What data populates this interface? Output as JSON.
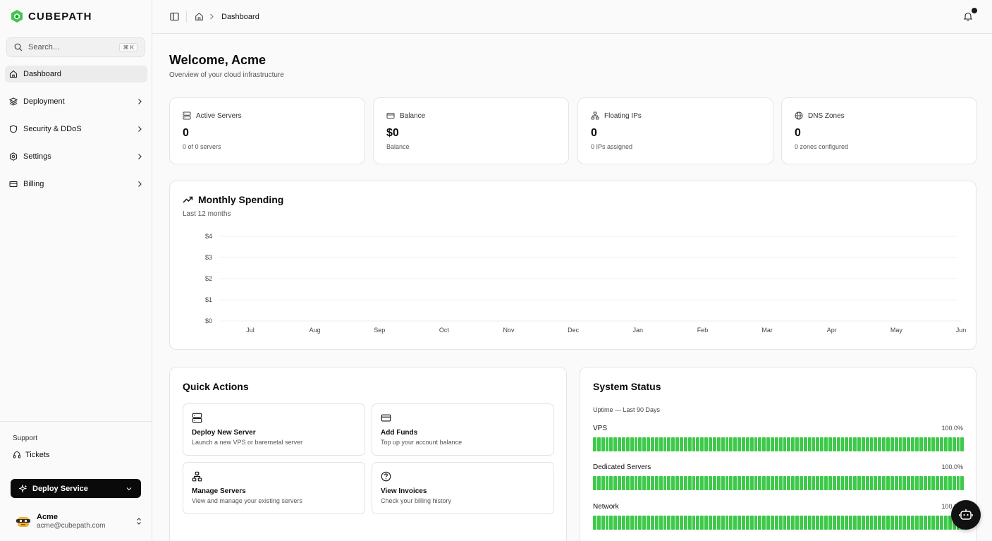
{
  "brand": {
    "name": "CUBEPATH",
    "logo_color": "#3ec94a"
  },
  "search": {
    "placeholder": "Search...",
    "shortcut": "⌘ K"
  },
  "sidebar": {
    "items": [
      {
        "label": "Dashboard",
        "icon": "home-icon",
        "active": true
      },
      {
        "label": "Deployment",
        "icon": "layers-icon"
      },
      {
        "label": "Security & DDoS",
        "icon": "shield-icon"
      },
      {
        "label": "Settings",
        "icon": "gear-icon"
      },
      {
        "label": "Billing",
        "icon": "credit-card-icon"
      }
    ],
    "support_label": "Support",
    "tickets_label": "Tickets",
    "deploy_label": "Deploy Service"
  },
  "user": {
    "name": "Acme",
    "email": "acme@cubepath.com"
  },
  "breadcrumb": {
    "current": "Dashboard"
  },
  "page": {
    "title": "Welcome, Acme",
    "subtitle": "Overview of your cloud infrastructure"
  },
  "stats": [
    {
      "label": "Active Servers",
      "value": "0",
      "sub": "0 of 0 servers",
      "icon": "server-icon"
    },
    {
      "label": "Balance",
      "value": "$0",
      "sub": "Balance",
      "icon": "credit-card-icon"
    },
    {
      "label": "Floating IPs",
      "value": "0",
      "sub": "0 IPs assigned",
      "icon": "network-icon"
    },
    {
      "label": "DNS Zones",
      "value": "0",
      "sub": "0 zones configured",
      "icon": "globe-icon"
    }
  ],
  "spending": {
    "title": "Monthly Spending",
    "subtitle": "Last 12 months"
  },
  "chart_data": {
    "type": "line",
    "categories": [
      "Jul",
      "Aug",
      "Sep",
      "Oct",
      "Nov",
      "Dec",
      "Jan",
      "Feb",
      "Mar",
      "Apr",
      "May",
      "Jun"
    ],
    "values": [
      0,
      0,
      0,
      0,
      0,
      0,
      0,
      0,
      0,
      0,
      0,
      0
    ],
    "yticks": [
      "$0",
      "$1",
      "$2",
      "$3",
      "$4"
    ],
    "ylim": [
      0,
      4
    ],
    "grid": true
  },
  "quick_actions": {
    "title": "Quick Actions",
    "items": [
      {
        "label": "Deploy New Server",
        "desc": "Launch a new VPS or baremetal server",
        "icon": "server-icon"
      },
      {
        "label": "Add Funds",
        "desc": "Top up your account balance",
        "icon": "credit-card-icon"
      },
      {
        "label": "Manage Servers",
        "desc": "View and manage your existing servers",
        "icon": "network-icon"
      },
      {
        "label": "View Invoices",
        "desc": "Check your billing history",
        "icon": "help-circle-icon"
      }
    ]
  },
  "system_status": {
    "title": "System Status",
    "subtitle": "Uptime — Last 90 Days",
    "status_color": "#3ec94a",
    "services": [
      {
        "name": "VPS",
        "uptime": "100.0%"
      },
      {
        "name": "Dedicated Servers",
        "uptime": "100.0%"
      },
      {
        "name": "Network",
        "uptime": "100.0%"
      }
    ]
  }
}
